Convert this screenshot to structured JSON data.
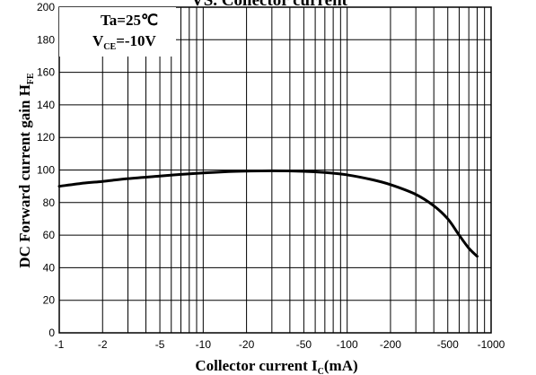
{
  "chart_data": {
    "type": "line",
    "title_fragment": "VS. Collector current",
    "xlabel": "Collector current I",
    "xlabel_sub": "C",
    "xlabel_suffix": "(mA)",
    "ylabel": "DC Forward current gain H",
    "ylabel_sub": "FE",
    "x_scale": "log",
    "x_ticks": [
      -1,
      -2,
      -5,
      -10,
      -20,
      -50,
      -100,
      -200,
      -500,
      -1000
    ],
    "xlim": [
      -1,
      -1000
    ],
    "ylim": [
      0,
      200
    ],
    "y_ticks": [
      0,
      20,
      40,
      60,
      80,
      100,
      120,
      140,
      160,
      180,
      200
    ],
    "grid": true,
    "annotation_temp": "Ta=25℃",
    "annotation_vce_prefix": "V",
    "annotation_vce_sub": "CE",
    "annotation_vce_suffix": "=-10V",
    "series": [
      {
        "x": [
          -1,
          -1.5,
          -2,
          -3,
          -5,
          -7,
          -10,
          -15,
          -20,
          -30,
          -50,
          -70,
          -100,
          -150,
          -200,
          -300,
          -400,
          -500,
          -600,
          -700,
          -800
        ],
        "y": [
          90,
          92,
          93,
          94.7,
          96.3,
          97.3,
          98.2,
          99,
          99.3,
          99.5,
          99.2,
          98.5,
          97,
          94,
          91,
          85,
          78,
          70,
          60,
          52,
          47
        ]
      }
    ]
  }
}
